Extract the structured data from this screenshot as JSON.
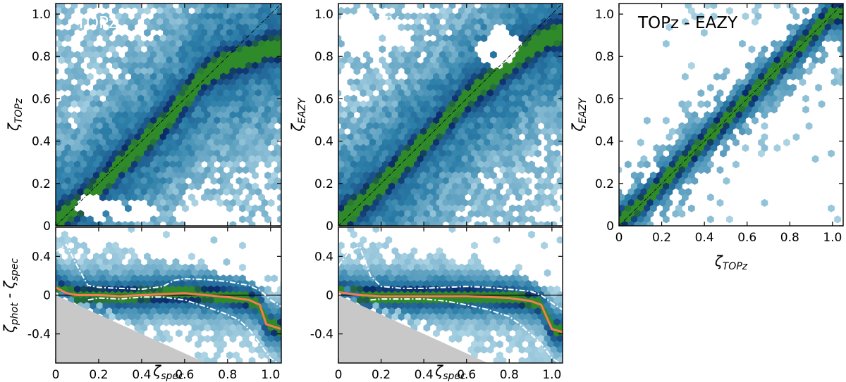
{
  "chart_data": [
    {
      "type": "heatmap",
      "id": "topz-main",
      "title": "TOPz",
      "xlabel": "",
      "ylabel": "ζTOPz",
      "ylabel_base": "ζ",
      "ylabel_sub": "TOPz",
      "xlim": [
        0,
        1.05
      ],
      "ylim": [
        0,
        1.05
      ],
      "xticks": [],
      "yticks": [
        "0",
        "0.2",
        "0.4",
        "0.6",
        "0.8",
        "1.0"
      ],
      "yticks_values": [
        0,
        0.2,
        0.4,
        0.6,
        0.8,
        1.0
      ],
      "diagonal": true,
      "ridge": [
        [
          0,
          0.02
        ],
        [
          0.1,
          0.09
        ],
        [
          0.2,
          0.18
        ],
        [
          0.3,
          0.29
        ],
        [
          0.4,
          0.38
        ],
        [
          0.5,
          0.48
        ],
        [
          0.6,
          0.6
        ],
        [
          0.7,
          0.72
        ],
        [
          0.8,
          0.77
        ],
        [
          0.9,
          0.8
        ],
        [
          1.0,
          0.84
        ]
      ],
      "voids": [
        [
          0.3,
          0.07,
          0.18,
          0.06
        ],
        [
          0.7,
          0.06,
          0.16,
          0.05
        ],
        [
          0.15,
          0.1,
          0.06,
          0.05
        ]
      ]
    },
    {
      "type": "heatmap",
      "id": "eazy-main",
      "title": "EAZY",
      "xlabel": "",
      "ylabel": "ζEAZY",
      "ylabel_base": "ζ",
      "ylabel_sub": "EAZY",
      "xlim": [
        0,
        1.05
      ],
      "ylim": [
        0,
        1.05
      ],
      "xticks": [],
      "yticks": [
        "0",
        "0.2",
        "0.4",
        "0.6",
        "0.8",
        "1.0"
      ],
      "yticks_values": [
        0,
        0.2,
        0.4,
        0.6,
        0.8,
        1.0
      ],
      "diagonal": true,
      "ridge": [
        [
          0,
          0.02
        ],
        [
          0.1,
          0.1
        ],
        [
          0.2,
          0.19
        ],
        [
          0.3,
          0.29
        ],
        [
          0.4,
          0.39
        ],
        [
          0.5,
          0.49
        ],
        [
          0.6,
          0.6
        ],
        [
          0.7,
          0.68
        ],
        [
          0.8,
          0.76
        ],
        [
          0.9,
          0.84
        ],
        [
          1.0,
          0.9
        ]
      ],
      "voids": [
        [
          0.15,
          0.9,
          0.15,
          0.1
        ],
        [
          0.75,
          0.85,
          0.1,
          0.1
        ]
      ]
    },
    {
      "type": "heatmap",
      "id": "topz-eazy",
      "title": "TOPz - EAZY",
      "xlabel": "ζTOPz",
      "xlabel_base": "ζ",
      "xlabel_sub": "TOPz",
      "ylabel": "ζEAZY",
      "ylabel_base": "ζ",
      "ylabel_sub": "EAZY",
      "xlim": [
        0,
        1.05
      ],
      "ylim": [
        0,
        1.05
      ],
      "xticks": [
        "0",
        "0.2",
        "0.4",
        "0.6",
        "0.8",
        "1.0"
      ],
      "xticks_values": [
        0,
        0.2,
        0.4,
        0.6,
        0.8,
        1.0
      ],
      "yticks": [
        "0",
        "0.2",
        "0.4",
        "0.6",
        "0.8",
        "1.0"
      ],
      "yticks_values": [
        0,
        0.2,
        0.4,
        0.6,
        0.8,
        1.0
      ],
      "diagonal": true,
      "ridge": [
        [
          0,
          0.02
        ],
        [
          0.1,
          0.1
        ],
        [
          0.2,
          0.2
        ],
        [
          0.3,
          0.3
        ],
        [
          0.4,
          0.4
        ],
        [
          0.5,
          0.5
        ],
        [
          0.6,
          0.6
        ],
        [
          0.7,
          0.7
        ],
        [
          0.8,
          0.8
        ],
        [
          0.9,
          0.9
        ],
        [
          1.0,
          1.0
        ]
      ],
      "voids": [
        [
          0.1,
          0.75,
          0.22,
          0.35
        ],
        [
          0.75,
          0.15,
          0.25,
          0.2
        ]
      ]
    },
    {
      "type": "heatmap",
      "id": "topz-residual",
      "title": "",
      "xlabel": "ζspec",
      "xlabel_base": "ζ",
      "xlabel_sub": "spec",
      "ylabel": "ζphot - ζspec",
      "ylabel_parts": [
        "ζ",
        "phot",
        " - ζ",
        "spec"
      ],
      "xlim": [
        0,
        1.05
      ],
      "ylim": [
        -0.7,
        0.7
      ],
      "xticks": [
        "0",
        "0.2",
        "0.4",
        "0.6",
        "0.8",
        "1.0"
      ],
      "xticks_values": [
        0,
        0.2,
        0.4,
        0.6,
        0.8,
        1.0
      ],
      "yticks": [
        "0.4",
        "0",
        "-0.4"
      ],
      "yticks_values": [
        0.4,
        0,
        -0.4
      ],
      "zero_line": true,
      "forbidden_region": "zphot < 0",
      "series": [
        {
          "name": "median",
          "color": "#f47c50",
          "style": "solid",
          "x": [
            0,
            0.05,
            0.1,
            0.2,
            0.3,
            0.4,
            0.5,
            0.6,
            0.7,
            0.8,
            0.9,
            0.95,
            0.98,
            1.05
          ],
          "y": [
            0.08,
            0.02,
            0.0,
            0.0,
            -0.01,
            0.0,
            0.01,
            0.02,
            0.0,
            -0.02,
            -0.05,
            -0.1,
            -0.3,
            -0.35
          ]
        },
        {
          "name": "upper",
          "color": "#ffffff",
          "style": "dashdot",
          "x": [
            0,
            0.05,
            0.1,
            0.15,
            0.2,
            0.3,
            0.4,
            0.5,
            0.55,
            0.6,
            0.7,
            0.8,
            0.9,
            0.95,
            1.0,
            1.05
          ],
          "y": [
            0.45,
            0.52,
            0.3,
            0.1,
            0.08,
            0.07,
            0.06,
            0.09,
            0.15,
            0.17,
            0.16,
            0.14,
            0.1,
            0.05,
            -0.05,
            -0.12
          ]
        },
        {
          "name": "lower",
          "color": "#ffffff",
          "style": "dashdot",
          "x": [
            0.15,
            0.2,
            0.3,
            0.4,
            0.5,
            0.6,
            0.7,
            0.8,
            0.85,
            0.9,
            0.95,
            1.0,
            1.05
          ],
          "y": [
            -0.05,
            -0.03,
            -0.04,
            -0.02,
            -0.02,
            -0.05,
            -0.12,
            -0.2,
            -0.25,
            -0.35,
            -0.5,
            -0.65,
            -0.72
          ]
        }
      ]
    },
    {
      "type": "heatmap",
      "id": "eazy-residual",
      "title": "",
      "xlabel": "ζspec",
      "xlabel_base": "ζ",
      "xlabel_sub": "spec",
      "ylabel": "",
      "xlim": [
        0,
        1.05
      ],
      "ylim": [
        -0.7,
        0.7
      ],
      "xticks": [
        "0",
        "0.2",
        "0.4",
        "0.6",
        "0.8",
        "1.0"
      ],
      "xticks_values": [
        0,
        0.2,
        0.4,
        0.6,
        0.8,
        1.0
      ],
      "yticks": [
        "0.4",
        "0",
        "-0.4"
      ],
      "yticks_values": [
        0.4,
        0,
        -0.4
      ],
      "zero_line": true,
      "forbidden_region": "zphot < 0",
      "series": [
        {
          "name": "median",
          "color": "#f47c50",
          "style": "solid",
          "x": [
            0,
            0.1,
            0.2,
            0.3,
            0.4,
            0.5,
            0.6,
            0.7,
            0.8,
            0.9,
            0.95,
            1.0,
            1.05
          ],
          "y": [
            0.03,
            0.0,
            -0.01,
            -0.01,
            -0.01,
            -0.01,
            -0.01,
            -0.02,
            -0.03,
            -0.06,
            -0.1,
            -0.35,
            -0.38
          ]
        },
        {
          "name": "upper",
          "color": "#ffffff",
          "style": "dashdot",
          "x": [
            0,
            0.05,
            0.1,
            0.15,
            0.2,
            0.3,
            0.4,
            0.5,
            0.6,
            0.7,
            0.8,
            0.9,
            0.95,
            1.0,
            1.05
          ],
          "y": [
            0.3,
            0.45,
            0.5,
            0.2,
            0.09,
            0.07,
            0.07,
            0.08,
            0.09,
            0.08,
            0.06,
            0.04,
            0.0,
            -0.08,
            -0.15
          ]
        },
        {
          "name": "lower",
          "color": "#ffffff",
          "style": "dashdot",
          "x": [
            0.15,
            0.2,
            0.3,
            0.4,
            0.5,
            0.6,
            0.7,
            0.8,
            0.85,
            0.9,
            0.95,
            1.0,
            1.05
          ],
          "y": [
            -0.05,
            -0.04,
            -0.04,
            -0.04,
            -0.06,
            -0.1,
            -0.15,
            -0.22,
            -0.3,
            -0.4,
            -0.5,
            -0.65,
            -0.72
          ]
        }
      ]
    }
  ],
  "colors": {
    "density_low": "#c3e3ef",
    "density_mid": "#2c7fa9",
    "density_high": "#0b2a6b",
    "density_peak": "#2f8a2a",
    "forbidden": "#c8c8c8",
    "diagonal": "#000000",
    "zero_line": "#000000"
  }
}
